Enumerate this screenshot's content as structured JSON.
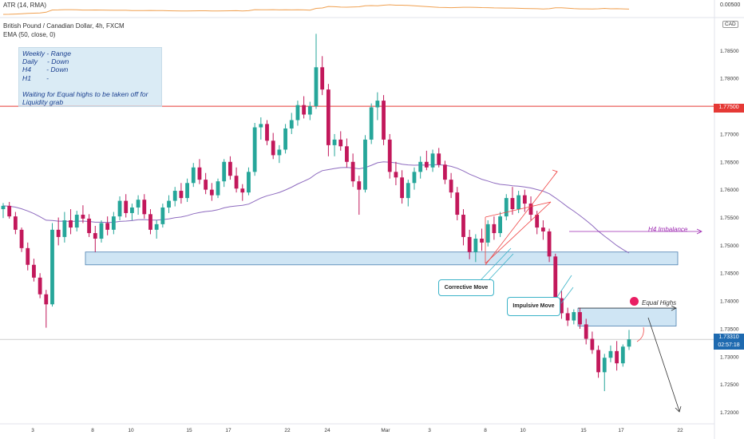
{
  "legend": {
    "atr_label": "ATR (14, RMA)",
    "title": "British Pound / Canadian Dollar, 4h, FXCM",
    "ema_label": "EMA (50, close, 0)"
  },
  "atr_value": "0.00500",
  "currency": "CAD",
  "note_lines": [
    "Weekly - Range",
    "Daily     - Down",
    "H4        - Down",
    "H1        -",
    "",
    "Waiting for Equal highs to be taken off for",
    "Liquidity grab"
  ],
  "annotations": {
    "h4_imbalance": "H4 Imbalance",
    "equal_highs": "Equal Highs",
    "corrective_move": "Corrective Move",
    "impulsive_move": "Impulsive Move"
  },
  "price_tags": {
    "resistance": "1.77500",
    "current": "1.73310",
    "countdown": "02:57:18"
  },
  "colors": {
    "up": "#26a69a",
    "down": "#c2185b",
    "ema": "#8e6bbf",
    "atr": "#f0a050",
    "resistance": "#e53935",
    "zone": "#bbdaf0",
    "imbalance": "#9c27b0",
    "trend_channel": "#ef4444"
  },
  "chart_data": {
    "type": "candlestick",
    "title": "British Pound / Canadian Dollar, 4h, FXCM",
    "y_ticks": [
      "1.78500",
      "1.78000",
      "1.77500",
      "1.77000",
      "1.76500",
      "1.76000",
      "1.75500",
      "1.75000",
      "1.74500",
      "1.74000",
      "1.73500",
      "1.73000",
      "1.72500",
      "1.72000"
    ],
    "x_ticks": [
      "3",
      "8",
      "10",
      "15",
      "17",
      "22",
      "24",
      "Mar",
      "3",
      "8",
      "10",
      "15",
      "17",
      "22"
    ],
    "ylim": [
      1.7185,
      1.7905
    ],
    "resistance_level": 1.775,
    "current_price": 1.7331,
    "zones": [
      {
        "name": "demand-zone",
        "low": 1.7465,
        "high": 1.7488
      },
      {
        "name": "equal-highs-zone",
        "low": 1.7355,
        "high": 1.7387
      }
    ],
    "imbalance_level": 1.7522,
    "candles": [
      [
        1.7565,
        1.7576,
        1.7549,
        1.7571
      ],
      [
        1.7571,
        1.7578,
        1.7548,
        1.7552
      ],
      [
        1.7552,
        1.756,
        1.752,
        1.7528
      ],
      [
        1.7528,
        1.7532,
        1.7488,
        1.7495
      ],
      [
        1.7495,
        1.7505,
        1.7455,
        1.7465
      ],
      [
        1.7465,
        1.7476,
        1.7435,
        1.7442
      ],
      [
        1.7442,
        1.745,
        1.7405,
        1.7412
      ],
      [
        1.7412,
        1.742,
        1.7352,
        1.7394
      ],
      [
        1.7394,
        1.754,
        1.739,
        1.7528
      ],
      [
        1.7528,
        1.755,
        1.75,
        1.7515
      ],
      [
        1.7515,
        1.756,
        1.7505,
        1.7545
      ],
      [
        1.7545,
        1.7565,
        1.752,
        1.7532
      ],
      [
        1.7532,
        1.7562,
        1.7525,
        1.7555
      ],
      [
        1.7555,
        1.7572,
        1.754,
        1.7548
      ],
      [
        1.7548,
        1.7556,
        1.7515,
        1.7522
      ],
      [
        1.7522,
        1.7535,
        1.7488,
        1.7512
      ],
      [
        1.7512,
        1.7545,
        1.7505,
        1.754
      ],
      [
        1.754,
        1.7552,
        1.7518,
        1.7528
      ],
      [
        1.7528,
        1.756,
        1.752,
        1.7552
      ],
      [
        1.7552,
        1.7588,
        1.7545,
        1.758
      ],
      [
        1.758,
        1.7592,
        1.755,
        1.7558
      ],
      [
        1.7558,
        1.7575,
        1.7545,
        1.7568
      ],
      [
        1.7568,
        1.759,
        1.7555,
        1.7582
      ],
      [
        1.7582,
        1.7592,
        1.7548,
        1.7556
      ],
      [
        1.7556,
        1.7565,
        1.752,
        1.7528
      ],
      [
        1.7528,
        1.7545,
        1.7512,
        1.7538
      ],
      [
        1.7538,
        1.7575,
        1.7532,
        1.7568
      ],
      [
        1.7568,
        1.759,
        1.7558,
        1.758
      ],
      [
        1.758,
        1.7605,
        1.757,
        1.7598
      ],
      [
        1.7598,
        1.7612,
        1.7575,
        1.7585
      ],
      [
        1.7585,
        1.762,
        1.7578,
        1.7612
      ],
      [
        1.7612,
        1.7648,
        1.7605,
        1.764
      ],
      [
        1.764,
        1.7655,
        1.761,
        1.7618
      ],
      [
        1.7618,
        1.763,
        1.7592,
        1.76
      ],
      [
        1.76,
        1.7612,
        1.758,
        1.759
      ],
      [
        1.759,
        1.762,
        1.7585,
        1.7615
      ],
      [
        1.7615,
        1.7655,
        1.7605,
        1.765
      ],
      [
        1.765,
        1.766,
        1.7618,
        1.7625
      ],
      [
        1.7625,
        1.764,
        1.7595,
        1.7602
      ],
      [
        1.7602,
        1.761,
        1.758,
        1.7595
      ],
      [
        1.7595,
        1.764,
        1.759,
        1.7632
      ],
      [
        1.7632,
        1.772,
        1.7625,
        1.7712
      ],
      [
        1.7712,
        1.773,
        1.769,
        1.7718
      ],
      [
        1.7718,
        1.7725,
        1.768,
        1.7688
      ],
      [
        1.7688,
        1.7702,
        1.7655,
        1.7662
      ],
      [
        1.7662,
        1.768,
        1.7648,
        1.7672
      ],
      [
        1.7672,
        1.7718,
        1.7665,
        1.771
      ],
      [
        1.771,
        1.7738,
        1.77,
        1.7725
      ],
      [
        1.7725,
        1.776,
        1.7715,
        1.7752
      ],
      [
        1.7752,
        1.7768,
        1.7728,
        1.7735
      ],
      [
        1.7735,
        1.7758,
        1.7725,
        1.775
      ],
      [
        1.775,
        1.788,
        1.7745,
        1.782
      ],
      [
        1.782,
        1.784,
        1.777,
        1.778
      ],
      [
        1.778,
        1.779,
        1.766,
        1.768
      ],
      [
        1.768,
        1.77,
        1.766,
        1.769
      ],
      [
        1.769,
        1.7705,
        1.767,
        1.7678
      ],
      [
        1.7678,
        1.7692,
        1.764,
        1.765
      ],
      [
        1.765,
        1.7665,
        1.7605,
        1.7615
      ],
      [
        1.7615,
        1.7625,
        1.7555,
        1.76
      ],
      [
        1.76,
        1.7698,
        1.7595,
        1.769
      ],
      [
        1.769,
        1.7755,
        1.7682,
        1.7748
      ],
      [
        1.7748,
        1.7775,
        1.7725,
        1.776
      ],
      [
        1.776,
        1.777,
        1.768,
        1.769
      ],
      [
        1.769,
        1.77,
        1.762,
        1.7632
      ],
      [
        1.7632,
        1.765,
        1.7608,
        1.7622
      ],
      [
        1.7622,
        1.7635,
        1.7575,
        1.7585
      ],
      [
        1.7585,
        1.7618,
        1.757,
        1.7612
      ],
      [
        1.7612,
        1.764,
        1.76,
        1.7632
      ],
      [
        1.7632,
        1.766,
        1.762,
        1.765
      ],
      [
        1.765,
        1.767,
        1.7635,
        1.764
      ],
      [
        1.764,
        1.7672,
        1.7632,
        1.7665
      ],
      [
        1.7665,
        1.7675,
        1.764,
        1.7645
      ],
      [
        1.7645,
        1.7652,
        1.761,
        1.7618
      ],
      [
        1.7618,
        1.763,
        1.7585,
        1.7595
      ],
      [
        1.7595,
        1.7605,
        1.7545,
        1.7555
      ],
      [
        1.7555,
        1.7565,
        1.75,
        1.7515
      ],
      [
        1.7515,
        1.7528,
        1.7475,
        1.7488
      ],
      [
        1.7488,
        1.752,
        1.747,
        1.7512
      ],
      [
        1.7512,
        1.753,
        1.749,
        1.7505
      ],
      [
        1.7505,
        1.7545,
        1.7498,
        1.7538
      ],
      [
        1.7538,
        1.7552,
        1.751,
        1.7522
      ],
      [
        1.7522,
        1.756,
        1.7515,
        1.7552
      ],
      [
        1.7552,
        1.7592,
        1.7545,
        1.7585
      ],
      [
        1.7585,
        1.7605,
        1.7555,
        1.7565
      ],
      [
        1.7565,
        1.7598,
        1.7558,
        1.759
      ],
      [
        1.759,
        1.76,
        1.756,
        1.7575
      ],
      [
        1.7575,
        1.7588,
        1.7545,
        1.7555
      ],
      [
        1.7555,
        1.7562,
        1.752,
        1.7532
      ],
      [
        1.7532,
        1.7545,
        1.751,
        1.7525
      ],
      [
        1.7525,
        1.753,
        1.747,
        1.748
      ],
      [
        1.748,
        1.7485,
        1.739,
        1.7405
      ],
      [
        1.7405,
        1.7418,
        1.7368,
        1.7378
      ],
      [
        1.7378,
        1.7388,
        1.7355,
        1.7365
      ],
      [
        1.7365,
        1.7385,
        1.7358,
        1.738
      ],
      [
        1.738,
        1.7388,
        1.735,
        1.7358
      ],
      [
        1.7358,
        1.7368,
        1.7322,
        1.7332
      ],
      [
        1.7332,
        1.7345,
        1.7305,
        1.7312
      ],
      [
        1.7312,
        1.732,
        1.7262,
        1.7272
      ],
      [
        1.7272,
        1.7305,
        1.7238,
        1.7298
      ],
      [
        1.7298,
        1.732,
        1.729,
        1.731
      ],
      [
        1.731,
        1.7328,
        1.7275,
        1.7288
      ],
      [
        1.7288,
        1.7322,
        1.7282,
        1.7318
      ],
      [
        1.7318,
        1.7348,
        1.7312,
        1.7331
      ]
    ]
  }
}
